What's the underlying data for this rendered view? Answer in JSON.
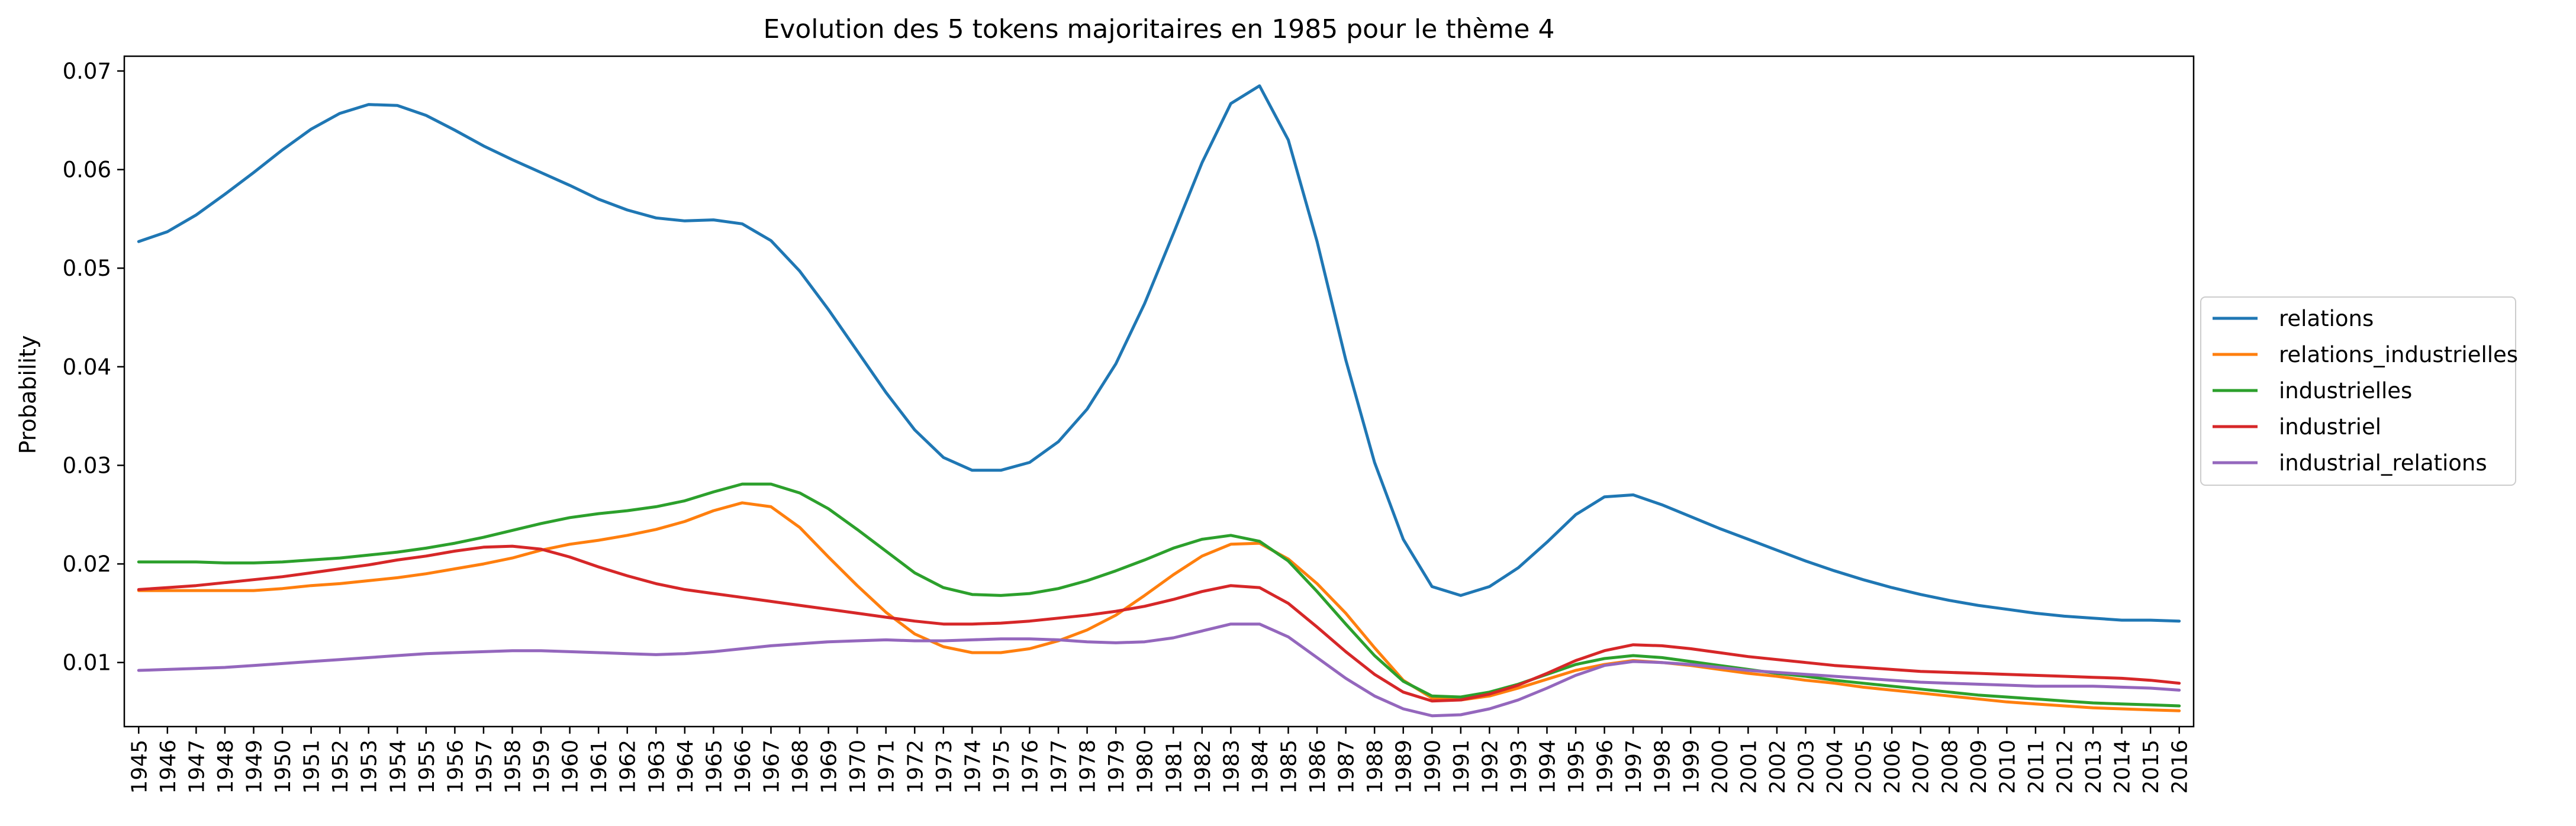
{
  "chart_data": {
    "type": "line",
    "title": "Evolution des 5 tokens majoritaires en 1985 pour le thème 4",
    "xlabel": "",
    "ylabel": "Probability",
    "ylim": [
      0.0035,
      0.0715
    ],
    "y_ticks": [
      0.01,
      0.02,
      0.03,
      0.04,
      0.05,
      0.06,
      0.07
    ],
    "y_tick_labels": [
      "0.01",
      "0.02",
      "0.03",
      "0.04",
      "0.05",
      "0.06",
      "0.07"
    ],
    "x": [
      1945,
      1946,
      1947,
      1948,
      1949,
      1950,
      1951,
      1952,
      1953,
      1954,
      1955,
      1956,
      1957,
      1958,
      1959,
      1960,
      1961,
      1962,
      1963,
      1964,
      1965,
      1966,
      1967,
      1968,
      1969,
      1970,
      1971,
      1972,
      1973,
      1974,
      1975,
      1976,
      1977,
      1978,
      1979,
      1980,
      1981,
      1982,
      1983,
      1984,
      1985,
      1986,
      1987,
      1988,
      1989,
      1990,
      1991,
      1992,
      1993,
      1994,
      1995,
      1996,
      1997,
      1998,
      1999,
      2000,
      2001,
      2002,
      2003,
      2004,
      2005,
      2006,
      2007,
      2008,
      2009,
      2010,
      2011,
      2012,
      2013,
      2014,
      2015,
      2016
    ],
    "x_tick_labels": [
      "1945",
      "1946",
      "1947",
      "1948",
      "1949",
      "1950",
      "1951",
      "1952",
      "1953",
      "1954",
      "1955",
      "1956",
      "1957",
      "1958",
      "1959",
      "1960",
      "1961",
      "1962",
      "1963",
      "1964",
      "1965",
      "1966",
      "1967",
      "1968",
      "1969",
      "1970",
      "1971",
      "1972",
      "1973",
      "1974",
      "1975",
      "1976",
      "1977",
      "1978",
      "1979",
      "1980",
      "1981",
      "1982",
      "1983",
      "1984",
      "1985",
      "1986",
      "1987",
      "1988",
      "1989",
      "1990",
      "1991",
      "1992",
      "1993",
      "1994",
      "1995",
      "1996",
      "1997",
      "1998",
      "1999",
      "2000",
      "2001",
      "2002",
      "2003",
      "2004",
      "2005",
      "2006",
      "2007",
      "2008",
      "2009",
      "2010",
      "2011",
      "2012",
      "2013",
      "2014",
      "2015",
      "2016"
    ],
    "legend_position": "right, outside plot",
    "grid": false,
    "series": [
      {
        "name": "relations",
        "color": "#1f77b4",
        "values": [
          0.0527,
          0.0537,
          0.0554,
          0.0575,
          0.0597,
          0.062,
          0.0641,
          0.0657,
          0.0666,
          0.0665,
          0.0655,
          0.064,
          0.0624,
          0.061,
          0.0597,
          0.0584,
          0.057,
          0.0559,
          0.0551,
          0.0548,
          0.0549,
          0.0545,
          0.0528,
          0.0497,
          0.0458,
          0.0416,
          0.0374,
          0.0336,
          0.0308,
          0.0295,
          0.0295,
          0.0303,
          0.0324,
          0.0357,
          0.0403,
          0.0464,
          0.0535,
          0.0607,
          0.0667,
          0.0685,
          0.063,
          0.0527,
          0.0407,
          0.0303,
          0.0225,
          0.0177,
          0.0168,
          0.0177,
          0.0196,
          0.0222,
          0.025,
          0.0268,
          0.027,
          0.026,
          0.0248,
          0.0236,
          0.0225,
          0.0214,
          0.0203,
          0.0193,
          0.0184,
          0.0176,
          0.0169,
          0.0163,
          0.0158,
          0.0154,
          0.015,
          0.0147,
          0.0145,
          0.0143,
          0.0143,
          0.0142
        ]
      },
      {
        "name": "relations_industrielles",
        "color": "#ff7f0e",
        "values": [
          0.0173,
          0.0173,
          0.0173,
          0.0173,
          0.0173,
          0.0175,
          0.0178,
          0.018,
          0.0183,
          0.0186,
          0.019,
          0.0195,
          0.02,
          0.0206,
          0.0214,
          0.022,
          0.0224,
          0.0229,
          0.0235,
          0.0243,
          0.0254,
          0.0262,
          0.0258,
          0.0237,
          0.0207,
          0.0178,
          0.0151,
          0.0129,
          0.0116,
          0.011,
          0.011,
          0.0114,
          0.0122,
          0.0133,
          0.0148,
          0.0168,
          0.0189,
          0.0208,
          0.022,
          0.0221,
          0.0205,
          0.018,
          0.015,
          0.0115,
          0.0082,
          0.0064,
          0.0062,
          0.0066,
          0.0074,
          0.0083,
          0.0092,
          0.0098,
          0.0102,
          0.01,
          0.0097,
          0.0093,
          0.0089,
          0.0086,
          0.0082,
          0.0079,
          0.0075,
          0.0072,
          0.0069,
          0.0066,
          0.0063,
          0.006,
          0.0058,
          0.0056,
          0.0054,
          0.0053,
          0.0052,
          0.0051
        ]
      },
      {
        "name": "industrielles",
        "color": "#2ca02c",
        "values": [
          0.0202,
          0.0202,
          0.0202,
          0.0201,
          0.0201,
          0.0202,
          0.0204,
          0.0206,
          0.0209,
          0.0212,
          0.0216,
          0.0221,
          0.0227,
          0.0234,
          0.0241,
          0.0247,
          0.0251,
          0.0254,
          0.0258,
          0.0264,
          0.0273,
          0.0281,
          0.0281,
          0.0272,
          0.0256,
          0.0235,
          0.0213,
          0.0191,
          0.0176,
          0.0169,
          0.0168,
          0.017,
          0.0175,
          0.0183,
          0.0193,
          0.0204,
          0.0216,
          0.0225,
          0.0229,
          0.0223,
          0.0203,
          0.0172,
          0.0139,
          0.0107,
          0.0081,
          0.0066,
          0.0065,
          0.007,
          0.0078,
          0.0088,
          0.0098,
          0.0104,
          0.0107,
          0.0105,
          0.0101,
          0.0097,
          0.0093,
          0.0089,
          0.0086,
          0.0082,
          0.0079,
          0.0076,
          0.0073,
          0.007,
          0.0067,
          0.0065,
          0.0063,
          0.0061,
          0.0059,
          0.0058,
          0.0057,
          0.0056
        ]
      },
      {
        "name": "industriel",
        "color": "#d62728",
        "values": [
          0.0174,
          0.0176,
          0.0178,
          0.0181,
          0.0184,
          0.0187,
          0.0191,
          0.0195,
          0.0199,
          0.0204,
          0.0208,
          0.0213,
          0.0217,
          0.0218,
          0.0215,
          0.0207,
          0.0197,
          0.0188,
          0.018,
          0.0174,
          0.017,
          0.0166,
          0.0162,
          0.0158,
          0.0154,
          0.015,
          0.0146,
          0.0142,
          0.0139,
          0.0139,
          0.014,
          0.0142,
          0.0145,
          0.0148,
          0.0152,
          0.0157,
          0.0164,
          0.0172,
          0.0178,
          0.0176,
          0.016,
          0.0136,
          0.0111,
          0.0088,
          0.007,
          0.0061,
          0.0062,
          0.0068,
          0.0077,
          0.0089,
          0.0102,
          0.0112,
          0.0118,
          0.0117,
          0.0114,
          0.011,
          0.0106,
          0.0103,
          0.01,
          0.0097,
          0.0095,
          0.0093,
          0.0091,
          0.009,
          0.0089,
          0.0088,
          0.0087,
          0.0086,
          0.0085,
          0.0084,
          0.0082,
          0.0079
        ]
      },
      {
        "name": "industrial_relations",
        "color": "#9467bd",
        "values": [
          0.0092,
          0.0093,
          0.0094,
          0.0095,
          0.0097,
          0.0099,
          0.0101,
          0.0103,
          0.0105,
          0.0107,
          0.0109,
          0.011,
          0.0111,
          0.0112,
          0.0112,
          0.0111,
          0.011,
          0.0109,
          0.0108,
          0.0109,
          0.0111,
          0.0114,
          0.0117,
          0.0119,
          0.0121,
          0.0122,
          0.0123,
          0.0122,
          0.0122,
          0.0123,
          0.0124,
          0.0124,
          0.0123,
          0.0121,
          0.012,
          0.0121,
          0.0125,
          0.0132,
          0.0139,
          0.0139,
          0.0126,
          0.0105,
          0.0084,
          0.0066,
          0.0053,
          0.0046,
          0.0047,
          0.0053,
          0.0062,
          0.0074,
          0.0087,
          0.0097,
          0.0101,
          0.01,
          0.0098,
          0.0095,
          0.0092,
          0.009,
          0.0088,
          0.0086,
          0.0084,
          0.0082,
          0.008,
          0.0079,
          0.0078,
          0.0077,
          0.0076,
          0.0076,
          0.0076,
          0.0075,
          0.0074,
          0.0072
        ]
      }
    ]
  }
}
